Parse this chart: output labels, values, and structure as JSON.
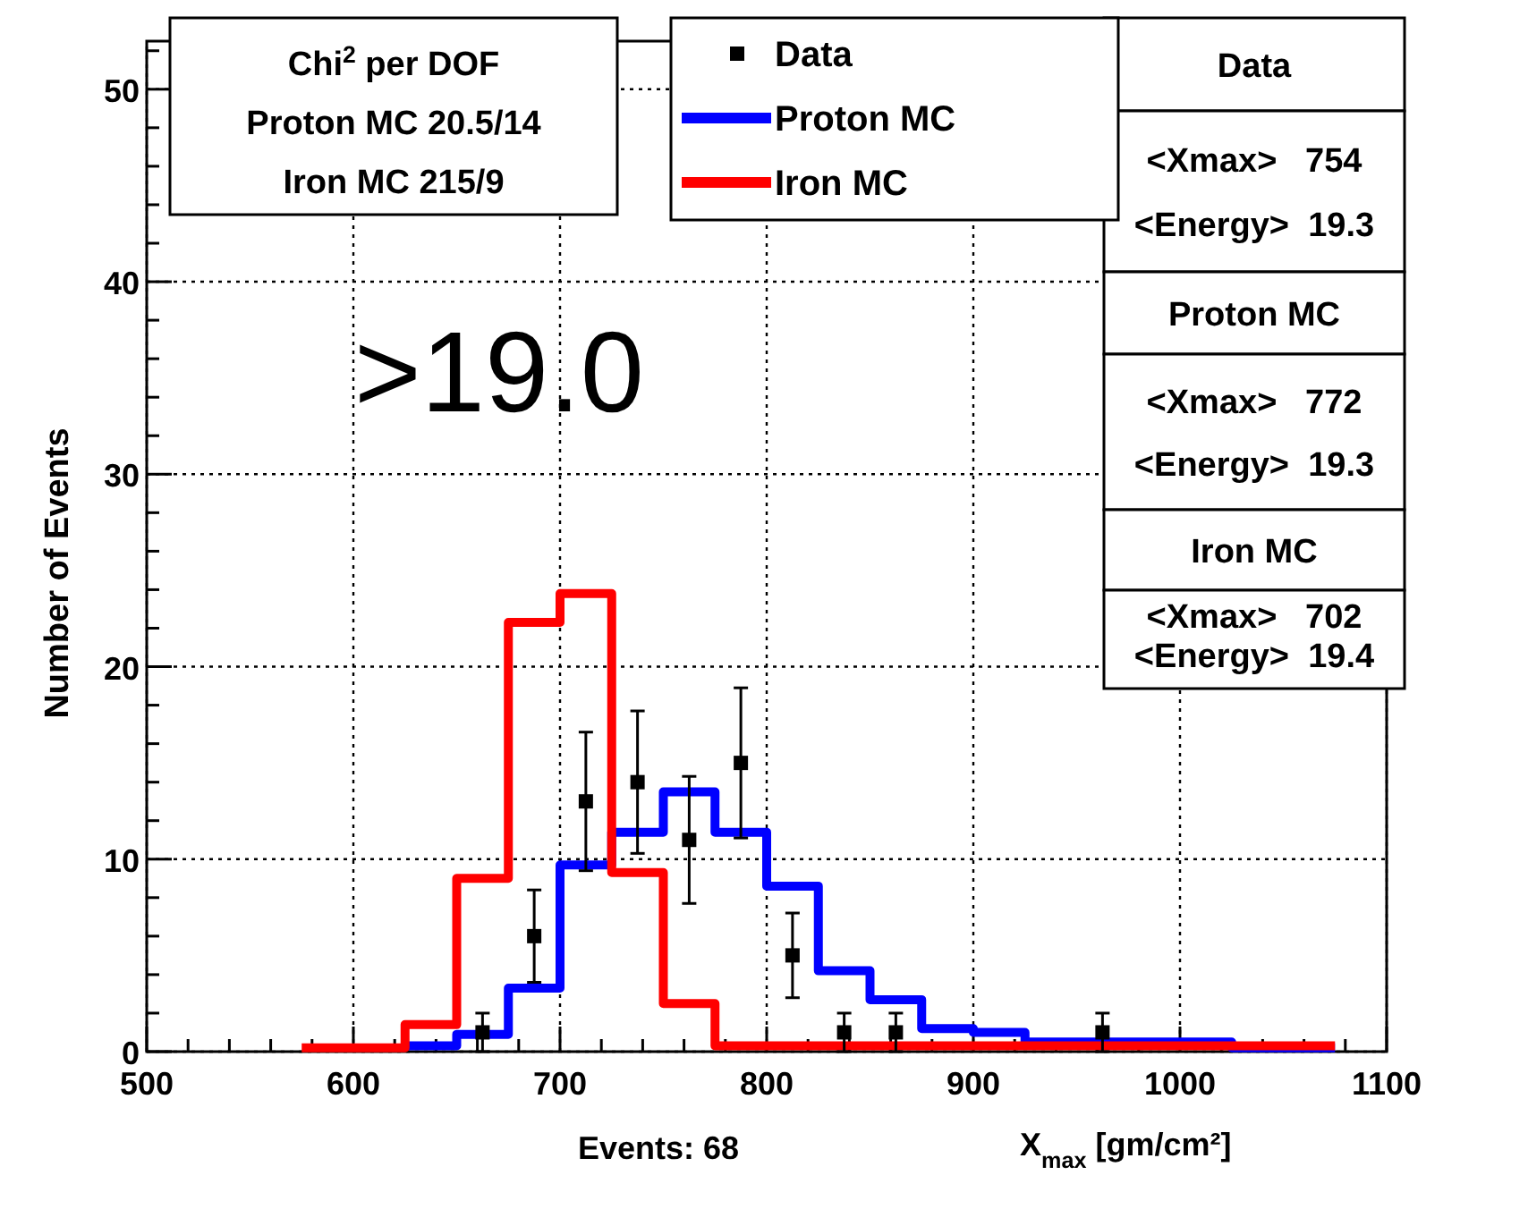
{
  "chart_data": {
    "type": "histogram",
    "xlabel": "X$_{max}$ [gm/cm²]",
    "ylabel": "Number of Events",
    "bins": [
      575,
      600,
      625,
      650,
      675,
      700,
      725,
      750,
      775,
      800,
      825,
      850,
      875,
      900,
      925,
      950,
      975,
      1000,
      1025,
      1050,
      1075
    ],
    "series": [
      {
        "name": "Data",
        "type": "scatter",
        "color": "#000000",
        "marker": "square",
        "x": [
          662.5,
          687.5,
          712.5,
          737.5,
          762.5,
          787.5,
          812.5,
          837.5,
          862.5,
          962.5
        ],
        "values": [
          1,
          6,
          13,
          14,
          11,
          15,
          5,
          1,
          1,
          1
        ],
        "errors": [
          1,
          2.4,
          3.6,
          3.7,
          3.3,
          3.9,
          2.2,
          1,
          1,
          1
        ]
      },
      {
        "name": "Proton MC",
        "color": "#0000ff",
        "bins": [
          625,
          650,
          675,
          700,
          725,
          750,
          775,
          800,
          825,
          850,
          875,
          900,
          925,
          950,
          975,
          1000,
          1025,
          1050,
          1075
        ],
        "values": [
          0.3,
          0.9,
          3.3,
          9.7,
          11.4,
          13.5,
          11.4,
          8.6,
          4.2,
          2.7,
          1.2,
          1.0,
          0.5,
          0.5,
          0.5,
          0.5,
          0.2,
          0.2
        ]
      },
      {
        "name": "Iron MC",
        "color": "#ff0000",
        "values": [
          0.2,
          0.2,
          1.4,
          9,
          22.3,
          23.8,
          9.3,
          2.5,
          0.3,
          0.3,
          0.3,
          0.3,
          0.3,
          0.3,
          0.3,
          0.3,
          0.3,
          0.3,
          0.3,
          0.3
        ]
      }
    ],
    "xlim": [
      500,
      1100
    ],
    "xticks": [
      500,
      600,
      700,
      800,
      900,
      1000,
      1100
    ],
    "ylim": [
      0,
      52.5
    ],
    "yticks": [
      0,
      10,
      20,
      30,
      40,
      50
    ],
    "grid": true,
    "legend": "top",
    "annotations": [
      "Chi$^{2}$ per DOF",
      "Proton MC 20.5/14",
      "Iron MC 215/9",
      ">19.0",
      "Events: 68",
      "Data",
      "<Xmax>   754",
      "<Energy>  19.3",
      "Proton MC",
      "<Xmax>   772",
      "<Energy>  19.3",
      "Iron MC",
      "<Xmax>   702",
      "<Energy>  19.4"
    ]
  }
}
